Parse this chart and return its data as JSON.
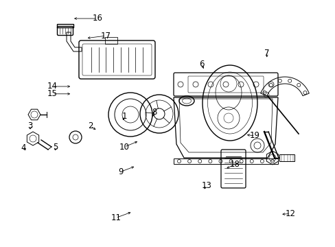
{
  "bg_color": "#ffffff",
  "figsize": [
    4.89,
    3.6
  ],
  "dpi": 100,
  "line_color": "#000000",
  "text_color": "#000000",
  "label_fontsize": 8.5,
  "labels": [
    [
      16,
      0.29,
      0.925,
      0.215,
      0.925
    ],
    [
      17,
      0.315,
      0.855,
      0.255,
      0.845
    ],
    [
      14,
      0.155,
      0.65,
      0.215,
      0.65
    ],
    [
      15,
      0.155,
      0.62,
      0.215,
      0.62
    ],
    [
      1,
      0.37,
      0.53,
      0.365,
      0.505
    ],
    [
      2,
      0.27,
      0.49,
      0.29,
      0.47
    ],
    [
      8,
      0.46,
      0.545,
      0.452,
      0.52
    ],
    [
      3,
      0.09,
      0.49,
      0.09,
      0.468
    ],
    [
      4,
      0.07,
      0.4,
      0.082,
      0.388
    ],
    [
      5,
      0.165,
      0.405,
      0.165,
      0.39
    ],
    [
      6,
      0.6,
      0.74,
      0.61,
      0.715
    ],
    [
      7,
      0.795,
      0.785,
      0.795,
      0.76
    ],
    [
      19,
      0.76,
      0.45,
      0.73,
      0.455
    ],
    [
      10,
      0.37,
      0.405,
      0.415,
      0.43
    ],
    [
      9,
      0.36,
      0.305,
      0.405,
      0.328
    ],
    [
      11,
      0.345,
      0.118,
      0.395,
      0.143
    ],
    [
      18,
      0.7,
      0.335,
      0.67,
      0.315
    ],
    [
      13,
      0.615,
      0.248,
      0.605,
      0.228
    ],
    [
      12,
      0.865,
      0.135,
      0.835,
      0.132
    ]
  ]
}
